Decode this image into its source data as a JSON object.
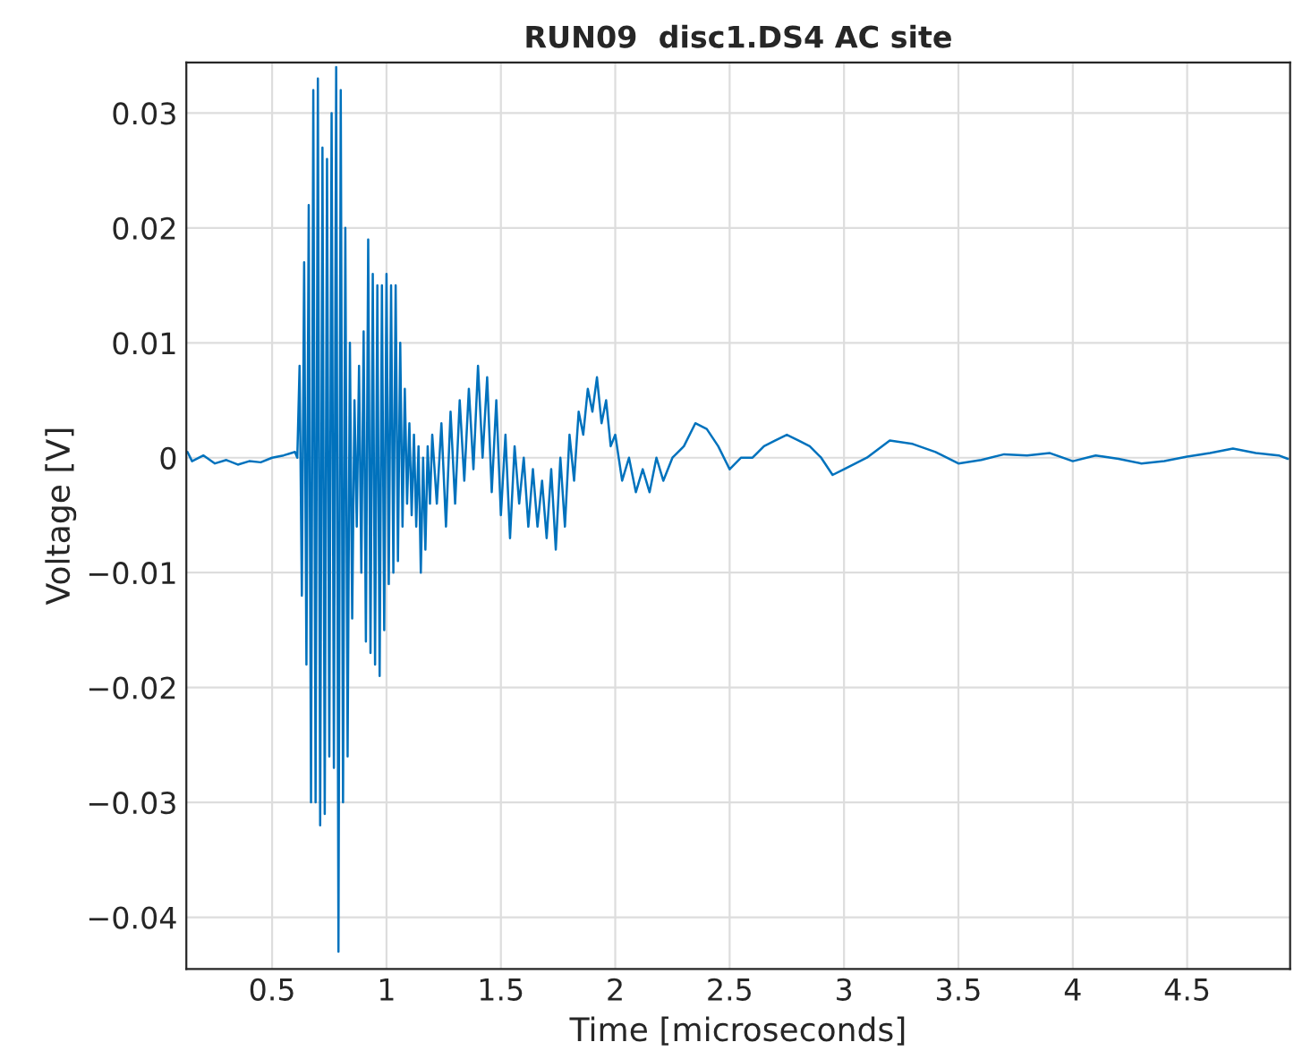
{
  "chart_data": {
    "type": "line",
    "title": "RUN09  disc1.DS4 AC site",
    "xlabel": "Time [microseconds]",
    "ylabel": "Voltage [V]",
    "xlim": [
      0.125,
      4.95
    ],
    "ylim": [
      -0.0445,
      0.0344
    ],
    "xticks": [
      0.5,
      1,
      1.5,
      2,
      2.5,
      3,
      3.5,
      4,
      4.5
    ],
    "yticks": [
      {
        "value": -0.04,
        "label": "−0.04"
      },
      {
        "value": -0.03,
        "label": "−0.03"
      },
      {
        "value": -0.02,
        "label": "−0.02"
      },
      {
        "value": -0.01,
        "label": "−0.01"
      },
      0,
      0.01,
      0.02,
      0.03
    ],
    "grid": true,
    "series": [
      {
        "color": "#0072bd",
        "x": [
          0.13,
          0.15,
          0.2,
          0.25,
          0.3,
          0.35,
          0.4,
          0.45,
          0.5,
          0.55,
          0.6,
          0.61,
          0.62,
          0.63,
          0.64,
          0.65,
          0.66,
          0.67,
          0.68,
          0.69,
          0.7,
          0.71,
          0.72,
          0.73,
          0.74,
          0.75,
          0.76,
          0.77,
          0.78,
          0.79,
          0.8,
          0.81,
          0.82,
          0.83,
          0.84,
          0.85,
          0.86,
          0.87,
          0.88,
          0.89,
          0.9,
          0.91,
          0.92,
          0.93,
          0.94,
          0.95,
          0.96,
          0.97,
          0.98,
          0.99,
          1.0,
          1.01,
          1.02,
          1.03,
          1.04,
          1.05,
          1.06,
          1.07,
          1.08,
          1.09,
          1.1,
          1.11,
          1.12,
          1.13,
          1.14,
          1.15,
          1.16,
          1.17,
          1.18,
          1.19,
          1.2,
          1.22,
          1.24,
          1.26,
          1.28,
          1.3,
          1.32,
          1.34,
          1.36,
          1.38,
          1.4,
          1.42,
          1.44,
          1.46,
          1.48,
          1.5,
          1.52,
          1.54,
          1.56,
          1.58,
          1.6,
          1.62,
          1.64,
          1.66,
          1.68,
          1.7,
          1.72,
          1.74,
          1.76,
          1.78,
          1.8,
          1.82,
          1.84,
          1.86,
          1.88,
          1.9,
          1.92,
          1.94,
          1.96,
          1.98,
          2.0,
          2.03,
          2.06,
          2.09,
          2.12,
          2.15,
          2.18,
          2.21,
          2.25,
          2.3,
          2.35,
          2.4,
          2.45,
          2.5,
          2.55,
          2.6,
          2.65,
          2.7,
          2.75,
          2.8,
          2.85,
          2.9,
          2.95,
          3.0,
          3.05,
          3.1,
          3.2,
          3.3,
          3.4,
          3.5,
          3.6,
          3.7,
          3.8,
          3.9,
          4.0,
          4.1,
          4.2,
          4.3,
          4.4,
          4.5,
          4.6,
          4.7,
          4.8,
          4.9,
          4.94
        ],
        "values": [
          0.0005,
          -0.0003,
          0.0002,
          -0.0005,
          -0.0002,
          -0.0006,
          -0.0003,
          -0.0004,
          0.0,
          0.0002,
          0.0005,
          0.0,
          0.008,
          -0.012,
          0.017,
          -0.018,
          0.022,
          -0.03,
          0.032,
          -0.03,
          0.033,
          -0.032,
          0.027,
          -0.031,
          0.026,
          -0.026,
          0.03,
          -0.027,
          0.034,
          -0.043,
          0.032,
          -0.03,
          0.02,
          -0.026,
          0.01,
          -0.014,
          0.005,
          -0.006,
          0.008,
          -0.01,
          0.011,
          -0.016,
          0.019,
          -0.017,
          0.016,
          -0.018,
          0.015,
          -0.019,
          0.015,
          -0.015,
          0.016,
          -0.011,
          0.015,
          -0.01,
          0.015,
          -0.009,
          0.01,
          -0.006,
          0.006,
          -0.004,
          0.003,
          -0.005,
          0.002,
          -0.006,
          0.001,
          -0.01,
          0.0,
          -0.008,
          0.001,
          -0.004,
          0.002,
          -0.004,
          0.003,
          -0.006,
          0.004,
          -0.004,
          0.005,
          -0.002,
          0.006,
          -0.001,
          0.008,
          0.0,
          0.007,
          -0.003,
          0.005,
          -0.005,
          0.002,
          -0.007,
          0.001,
          -0.004,
          0.0,
          -0.006,
          -0.001,
          -0.006,
          -0.002,
          -0.007,
          -0.001,
          -0.008,
          0.0,
          -0.006,
          0.002,
          -0.002,
          0.004,
          0.002,
          0.006,
          0.004,
          0.007,
          0.003,
          0.005,
          0.001,
          0.002,
          -0.002,
          0.0,
          -0.003,
          -0.001,
          -0.003,
          0.0,
          -0.002,
          0.0,
          0.001,
          0.003,
          0.0025,
          0.001,
          -0.001,
          0.0,
          0.0,
          0.001,
          0.0015,
          0.002,
          0.0015,
          0.001,
          0.0,
          -0.0015,
          -0.001,
          -0.0005,
          0.0,
          0.0015,
          0.0012,
          0.0005,
          -0.0005,
          -0.0002,
          0.0003,
          0.0002,
          0.0004,
          -0.0003,
          0.0002,
          -0.0001,
          -0.0005,
          -0.0003,
          0.0001,
          0.0004,
          0.0008,
          0.0004,
          0.0002,
          -0.0001
        ]
      }
    ]
  }
}
